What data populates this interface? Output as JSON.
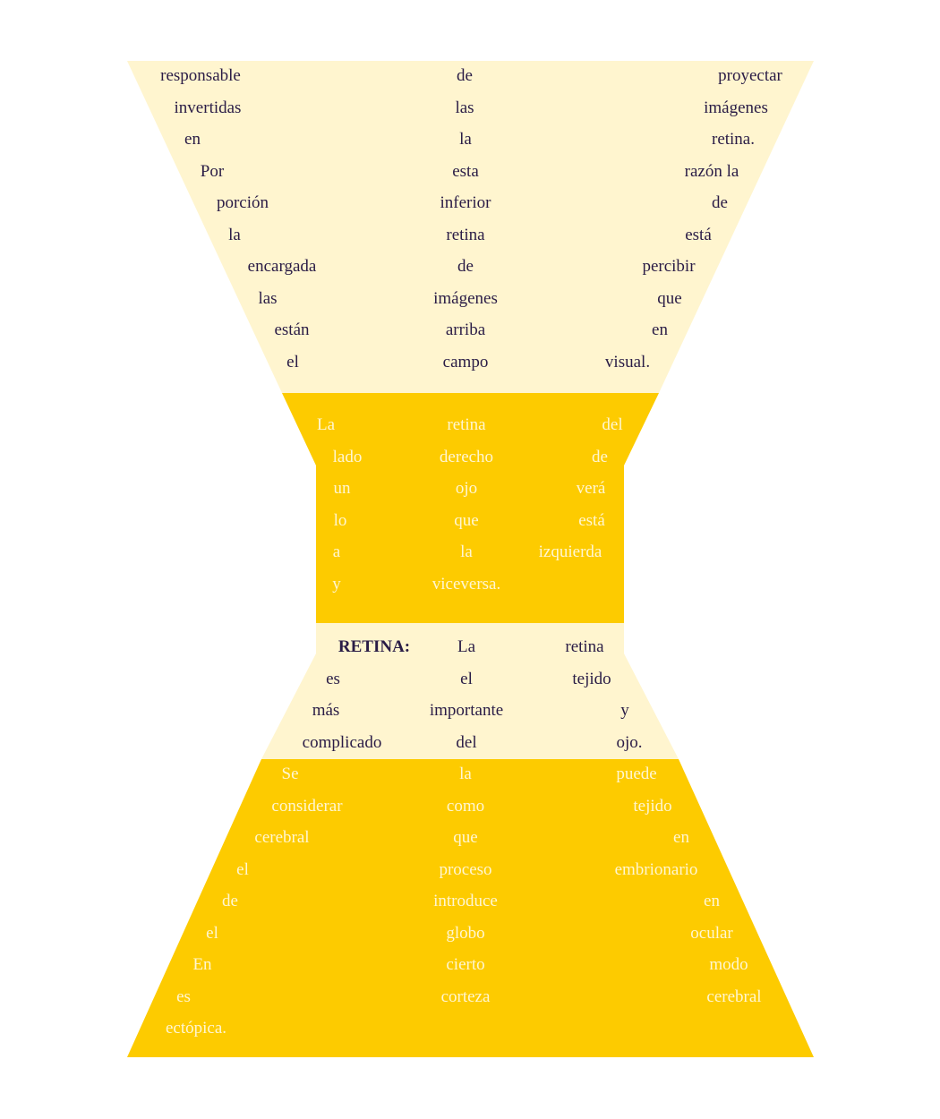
{
  "colors": {
    "pale_yellow": "#fff5cf",
    "golden_yellow": "#fdcb00",
    "dark_text": "#2a1c46",
    "light_text": "#fff6d2"
  },
  "top_section": {
    "lines": [
      [
        "responsable",
        "de",
        "proyectar"
      ],
      [
        "invertidas",
        "las",
        "imágenes"
      ],
      [
        "en",
        "la",
        "retina."
      ],
      [
        "Por",
        "esta",
        "razón la"
      ],
      [
        "porción",
        "inferior",
        "de"
      ],
      [
        "la",
        "retina",
        "está"
      ],
      [
        "encargada",
        "de",
        "percibir"
      ],
      [
        "las",
        "imágenes",
        "que"
      ],
      [
        "están",
        "arriba",
        "en"
      ],
      [
        "el",
        "campo",
        "visual."
      ]
    ]
  },
  "middle_section": {
    "lines": [
      [
        "La",
        "retina",
        "del"
      ],
      [
        "lado",
        "derecho",
        "de"
      ],
      [
        "un",
        "ojo",
        "verá"
      ],
      [
        "lo",
        "que",
        "está"
      ],
      [
        "a",
        "la",
        "izquierda"
      ],
      [
        "y",
        "viceversa.",
        ""
      ]
    ]
  },
  "retina_section": {
    "lines": [
      [
        "RETINA:",
        "La",
        "retina"
      ],
      [
        "es",
        "el",
        "tejido"
      ],
      [
        "más",
        "importante",
        "y"
      ],
      [
        "complicado",
        "del",
        "ojo."
      ]
    ]
  },
  "bottom_section": {
    "lines": [
      [
        "Se",
        "la",
        "puede"
      ],
      [
        "considerar",
        "como",
        "tejido"
      ],
      [
        "cerebral",
        "que",
        "en"
      ],
      [
        "el",
        "proceso",
        "embrionario"
      ],
      [
        "de",
        "introduce",
        "en"
      ],
      [
        "el",
        "globo",
        "ocular"
      ],
      [
        "En",
        "cierto",
        "modo"
      ],
      [
        "es",
        "corteza",
        "cerebral"
      ],
      [
        "ectópica.",
        "",
        ""
      ]
    ]
  }
}
